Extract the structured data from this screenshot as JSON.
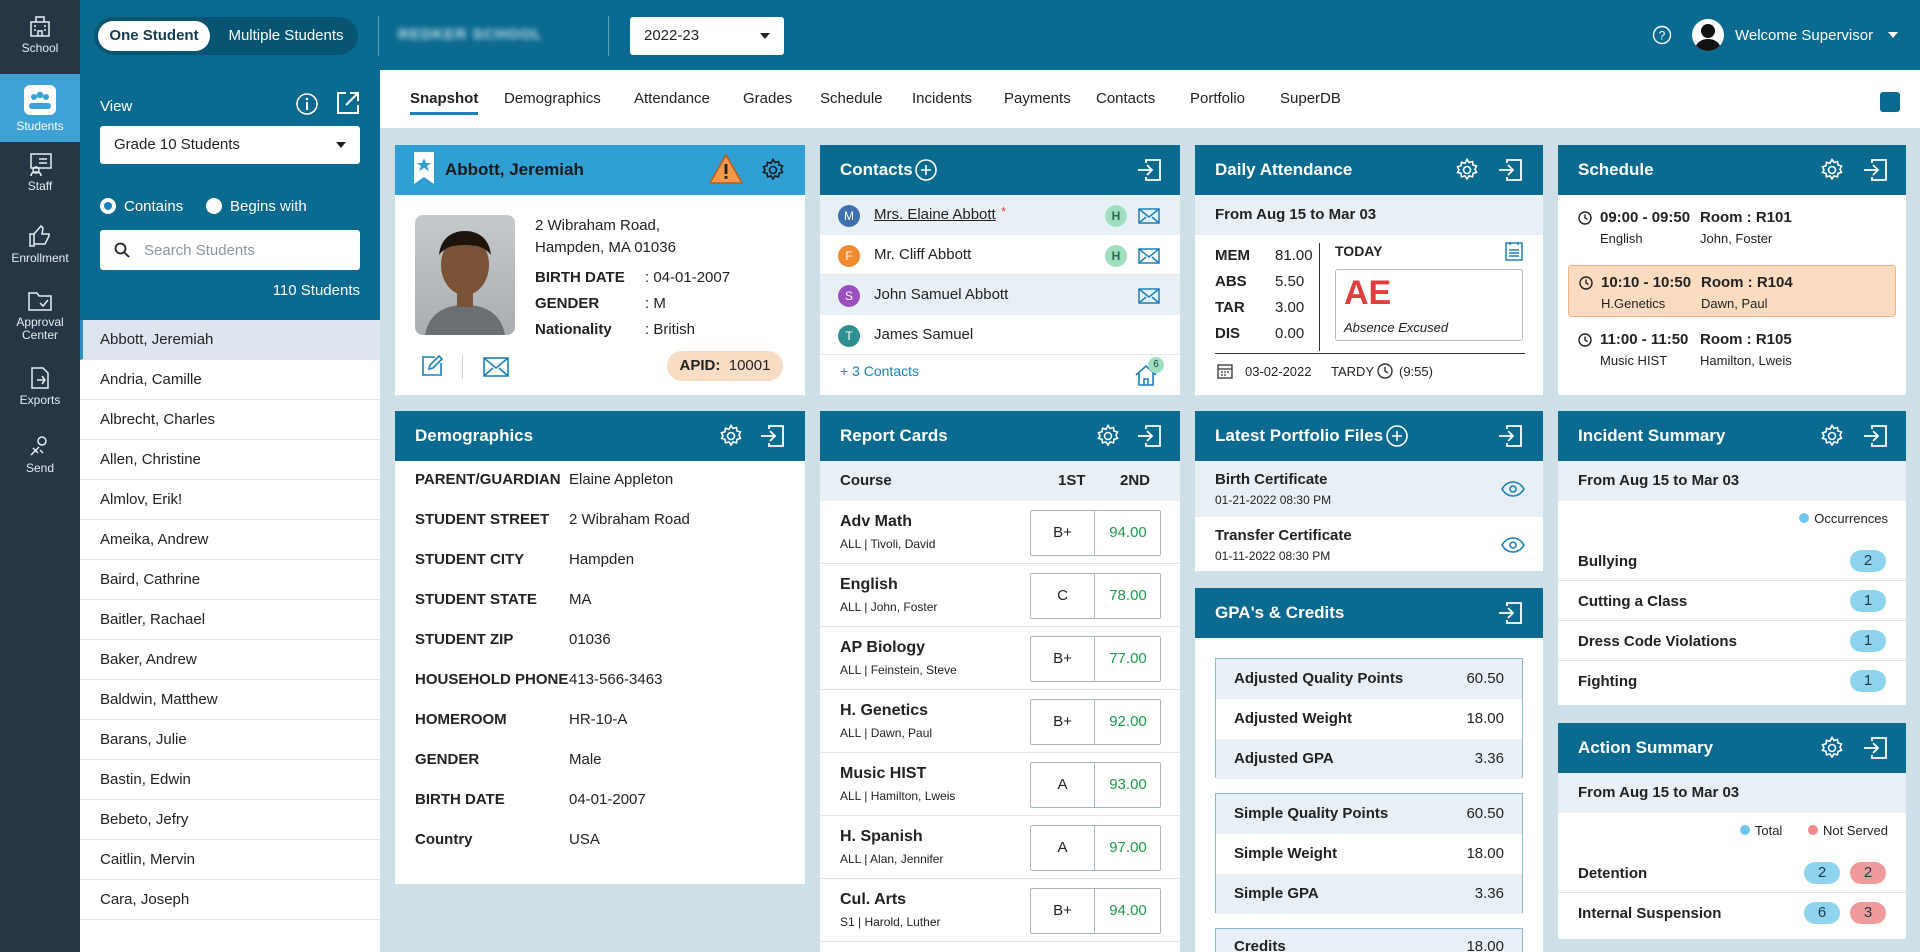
{
  "rail": [
    {
      "label": "School",
      "icon": "school-icon"
    },
    {
      "label": "Students",
      "icon": "students-icon"
    },
    {
      "label": "Staff",
      "icon": "staff-icon"
    },
    {
      "label": "Enrollment",
      "icon": "enrollment-icon"
    },
    {
      "label": "Approval",
      "label2": "Center",
      "icon": "approval-center-icon"
    },
    {
      "label": "Exports",
      "icon": "exports-icon"
    },
    {
      "label": "Send",
      "icon": "send-icon"
    }
  ],
  "topbar": {
    "mode_one": "One Student",
    "mode_multi": "Multiple Students",
    "school_name": "REDKER SCHOOL",
    "year": "2022-23",
    "welcome": "Welcome Supervisor"
  },
  "filter": {
    "view_label": "View",
    "view_value": "Grade 10 Students",
    "contains": "Contains",
    "begins_with": "Begins with",
    "search_placeholder": "Search Students",
    "count": "110 Students"
  },
  "students": [
    "Abbott, Jeremiah",
    "Andria, Camille",
    "Albrecht, Charles",
    "Allen, Christine",
    "Almlov, Erik!",
    "Ameika, Andrew",
    "Baird, Cathrine",
    "Baitler, Rachael",
    "Baker, Andrew",
    "Baldwin, Matthew",
    "Barans, Julie",
    "Bastin, Edwin",
    "Bebeto, Jefry",
    "Caitlin, Mervin",
    "Cara, Joseph"
  ],
  "tabs": [
    "Snapshot",
    "Demographics",
    "Attendance",
    "Grades",
    "Schedule",
    "Incidents",
    "Payments",
    "Contacts",
    "Portfolio",
    "SuperDB"
  ],
  "student": {
    "name": "Abbott, Jeremiah",
    "address1": "2 Wibraham Road,",
    "address2": "Hampden, MA 01036",
    "birth_label": "BIRTH DATE",
    "birth": ": 04-01-2007",
    "gender_label": "GENDER",
    "gender": ": M",
    "nat_label": "Nationality",
    "nationality": ": British",
    "apid_label": "APID:",
    "apid": "10001"
  },
  "contacts": {
    "title": "Contacts",
    "items": [
      {
        "initial": "M",
        "name": "Mrs. Elaine Abbott",
        "star": "*",
        "h": "H",
        "color": "#3f6fb0"
      },
      {
        "initial": "F",
        "name": "Mr. Cliff Abbott",
        "h": "H",
        "color": "#f0892f"
      },
      {
        "initial": "S",
        "name": "John Samuel Abbott",
        "color": "#9a4fc0"
      },
      {
        "initial": "T",
        "name": "James Samuel",
        "color": "#2f8f8f"
      }
    ],
    "more": "+ 3 Contacts",
    "home_count": "6"
  },
  "attendance": {
    "title": "Daily Attendance",
    "range": "From Aug 15 to Mar 03",
    "stats": [
      {
        "k": "MEM",
        "v": "81.00"
      },
      {
        "k": "ABS",
        "v": "5.50"
      },
      {
        "k": "TAR",
        "v": "3.00"
      },
      {
        "k": "DIS",
        "v": "0.00"
      }
    ],
    "today": "TODAY",
    "code": "AE",
    "code_desc": "Absence Excused",
    "date": "03-02-2022",
    "tardy": "TARDY",
    "time": "(9:55)"
  },
  "schedule": {
    "title": "Schedule",
    "items": [
      {
        "time": "09:00 - 09:50",
        "room": "Room : R101",
        "course": "English",
        "teacher": "John, Foster"
      },
      {
        "time": "10:10 - 10:50",
        "room": "Room : R104",
        "course": "H.Genetics",
        "teacher": "Dawn, Paul"
      },
      {
        "time": "11:00 - 11:50",
        "room": "Room : R105",
        "course": "Music HIST",
        "teacher": "Hamilton, Lweis"
      }
    ]
  },
  "demographics": {
    "title": "Demographics",
    "rows": [
      {
        "k": "PARENT/GUARDIAN",
        "v": "Elaine Appleton"
      },
      {
        "k": "STUDENT STREET",
        "v": "2 Wibraham Road"
      },
      {
        "k": "STUDENT CITY",
        "v": "Hampden"
      },
      {
        "k": "STUDENT STATE",
        "v": "MA"
      },
      {
        "k": "STUDENT ZIP",
        "v": "01036"
      },
      {
        "k": "HOUSEHOLD PHONE",
        "v": "413-566-3463"
      },
      {
        "k": "HOMEROOM",
        "v": "HR-10-A"
      },
      {
        "k": "GENDER",
        "v": "Male"
      },
      {
        "k": "BIRTH DATE",
        "v": "04-01-2007"
      },
      {
        "k": "Country",
        "v": "USA"
      }
    ]
  },
  "report": {
    "title": "Report Cards",
    "col_course": "Course",
    "col_1": "1ST",
    "col_2": "2ND",
    "rows": [
      {
        "course": "Adv Math",
        "sub": "ALL  |  Tivoli, David",
        "g1": "B+",
        "g2": "94.00"
      },
      {
        "course": "English",
        "sub": "ALL  |  John, Foster",
        "g1": "C",
        "g2": "78.00"
      },
      {
        "course": "AP Biology",
        "sub": "ALL  |  Feinstein, Steve",
        "g1": "B+",
        "g2": "77.00"
      },
      {
        "course": "H. Genetics",
        "sub": "ALL  |  Dawn, Paul",
        "g1": "B+",
        "g2": "92.00"
      },
      {
        "course": "Music HIST",
        "sub": "ALL  |  Hamilton, Lweis",
        "g1": "A",
        "g2": "93.00"
      },
      {
        "course": "H. Spanish",
        "sub": "ALL  |  Alan, Jennifer",
        "g1": "A",
        "g2": "97.00"
      },
      {
        "course": "Cul. Arts",
        "sub": "S1  |  Harold, Luther",
        "g1": "B+",
        "g2": "94.00"
      }
    ]
  },
  "portfolio": {
    "title": "Latest Portfolio Files",
    "items": [
      {
        "name": "Birth Certificate",
        "date": "01-21-2022 08:30 PM"
      },
      {
        "name": "Transfer Certificate",
        "date": "01-11-2022 08:30 PM"
      }
    ]
  },
  "gpa": {
    "title": "GPA's & Credits",
    "group1": [
      {
        "k": "Adjusted Quality Points",
        "v": "60.50"
      },
      {
        "k": "Adjusted Weight",
        "v": "18.00"
      },
      {
        "k": "Adjusted GPA",
        "v": "3.36"
      }
    ],
    "group2": [
      {
        "k": "Simple Quality Points",
        "v": "60.50"
      },
      {
        "k": "Simple Weight",
        "v": "18.00"
      },
      {
        "k": "Simple GPA",
        "v": "3.36"
      }
    ],
    "credits": {
      "k": "Credits",
      "v": "18.00"
    }
  },
  "incidents": {
    "title": "Incident Summary",
    "range": "From Aug 15 to Mar 03",
    "legend": "Occurrences",
    "rows": [
      {
        "k": "Bullying",
        "v": "2"
      },
      {
        "k": "Cutting a Class",
        "v": "1"
      },
      {
        "k": "Dress Code Violations",
        "v": "1"
      },
      {
        "k": "Fighting",
        "v": "1"
      }
    ]
  },
  "actions": {
    "title": "Action Summary",
    "range": "From Aug 15 to Mar 03",
    "legend_total": "Total",
    "legend_not": "Not Served",
    "rows": [
      {
        "k": "Detention",
        "t": "2",
        "n": "2"
      },
      {
        "k": "Internal Suspension",
        "t": "6",
        "n": "3"
      }
    ]
  },
  "colors": {
    "primary": "#0a6a8f",
    "accent": "#2f9fd4",
    "highlight": "#fbdcc0",
    "grade_green": "#1c9a4a",
    "ae_red": "#e23c3c"
  }
}
